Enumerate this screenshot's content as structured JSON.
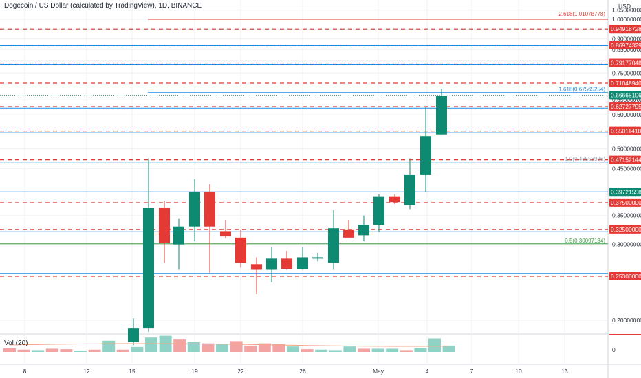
{
  "header": {
    "title": "Dogecoin / US Dollar (calculated by TradingView), 1D, BINANCE"
  },
  "volume": {
    "label": "Vol (20)"
  },
  "price_axis": {
    "currency": "USD",
    "ticks": [
      "1.05000000",
      "1.00000000",
      "0.90000000",
      "0.85000000",
      "0.80000000",
      "0.75000000",
      "0.65000000",
      "0.60000000",
      "0.50000000",
      "0.45000000",
      "0.35000000",
      "0.30000000",
      "0.20000000",
      "0.15000000"
    ],
    "volume_tick": "0"
  },
  "time_axis": {
    "labels": [
      "8",
      "12",
      "15",
      "19",
      "22",
      "26",
      "May",
      "4",
      "7",
      "10",
      "13"
    ]
  },
  "price_tags": [
    {
      "label": "0.94918728",
      "color": "#e53935"
    },
    {
      "label": "0.86974329",
      "color": "#e53935"
    },
    {
      "label": "0.79177048",
      "color": "#e53935"
    },
    {
      "label": "0.71048940",
      "color": "#e53935"
    },
    {
      "label": "0.66665106",
      "color": "#0f8a72"
    },
    {
      "label": "0.62727795",
      "color": "#e53935"
    },
    {
      "label": "0.55011418",
      "color": "#e53935"
    },
    {
      "label": "0.47152144",
      "color": "#e53935"
    },
    {
      "label": "0.39721558",
      "color": "#0f8a72"
    },
    {
      "label": "0.37500000",
      "color": "#e53935"
    },
    {
      "label": "0.32500000",
      "color": "#e53935"
    },
    {
      "label": "0.25300000",
      "color": "#e53935"
    }
  ],
  "fib_labels": [
    {
      "text": "2.618(1.01078778)",
      "color": "#e53935"
    },
    {
      "text": "1.618(0.67565254)",
      "color": "#1e88e5"
    },
    {
      "text": "1.0(0.46553936)",
      "color": "#9ea4b3"
    },
    {
      "text": "0.5(0.30097134)",
      "color": "#43a047"
    }
  ],
  "colors": {
    "up": "#0f8a72",
    "down": "#e53935",
    "blue_line": "#1e88e5",
    "red_dash": "#e53935",
    "green_line": "#43a047"
  },
  "chart_data": {
    "type": "candlestick",
    "candles": [
      {
        "x": "14",
        "o": 0.178,
        "h": 0.202,
        "l": 0.175,
        "c": 0.192
      },
      {
        "x": "15",
        "o": 0.192,
        "h": 0.475,
        "l": 0.188,
        "c": 0.365
      },
      {
        "x": "16",
        "o": 0.365,
        "h": 0.378,
        "l": 0.272,
        "c": 0.302
      },
      {
        "x": "17",
        "o": 0.3,
        "h": 0.345,
        "l": 0.262,
        "c": 0.33
      },
      {
        "x": "19",
        "o": 0.33,
        "h": 0.425,
        "l": 0.305,
        "c": 0.397
      },
      {
        "x": "20",
        "o": 0.397,
        "h": 0.414,
        "l": 0.258,
        "c": 0.33
      },
      {
        "x": "21",
        "o": 0.322,
        "h": 0.342,
        "l": 0.31,
        "c": 0.313
      },
      {
        "x": "22",
        "o": 0.311,
        "h": 0.325,
        "l": 0.265,
        "c": 0.272
      },
      {
        "x": "23",
        "o": 0.27,
        "h": 0.28,
        "l": 0.23,
        "c": 0.262
      },
      {
        "x": "24",
        "o": 0.262,
        "h": 0.296,
        "l": 0.245,
        "c": 0.278
      },
      {
        "x": "25",
        "o": 0.278,
        "h": 0.29,
        "l": 0.262,
        "c": 0.263
      },
      {
        "x": "26",
        "o": 0.263,
        "h": 0.296,
        "l": 0.262,
        "c": 0.28
      },
      {
        "x": "27",
        "o": 0.278,
        "h": 0.287,
        "l": 0.274,
        "c": 0.28
      },
      {
        "x": "28",
        "o": 0.272,
        "h": 0.36,
        "l": 0.262,
        "c": 0.327
      },
      {
        "x": "29",
        "o": 0.325,
        "h": 0.342,
        "l": 0.315,
        "c": 0.311
      },
      {
        "x": "30",
        "o": 0.315,
        "h": 0.35,
        "l": 0.305,
        "c": 0.333
      },
      {
        "x": "May",
        "o": 0.333,
        "h": 0.392,
        "l": 0.32,
        "c": 0.388
      },
      {
        "x": "2",
        "o": 0.388,
        "h": 0.392,
        "l": 0.372,
        "c": 0.376
      },
      {
        "x": "3",
        "o": 0.37,
        "h": 0.475,
        "l": 0.362,
        "c": 0.436
      },
      {
        "x": "4",
        "o": 0.436,
        "h": 0.625,
        "l": 0.397,
        "c": 0.535
      },
      {
        "x": "5",
        "o": 0.54,
        "h": 0.69,
        "l": 0.54,
        "c": 0.664
      }
    ],
    "volume": [
      {
        "x": "4",
        "v": 0.8,
        "up": false
      },
      {
        "x": "5",
        "v": 0.5,
        "up": false
      },
      {
        "x": "6",
        "v": 0.4,
        "up": true
      },
      {
        "x": "7",
        "v": 0.7,
        "up": false
      },
      {
        "x": "8",
        "v": 0.6,
        "up": false
      },
      {
        "x": "9",
        "v": 0.3,
        "up": true
      },
      {
        "x": "10",
        "v": 0.5,
        "up": false
      },
      {
        "x": "11",
        "v": 2.5,
        "up": true
      },
      {
        "x": "12",
        "v": 0.5,
        "up": false
      },
      {
        "x": "13",
        "v": 1.1,
        "up": true
      },
      {
        "x": "14",
        "v": 3.2,
        "up": true
      },
      {
        "x": "15",
        "v": 3.6,
        "up": true
      },
      {
        "x": "16",
        "v": 2.9,
        "up": false
      },
      {
        "x": "17",
        "v": 2.2,
        "up": true
      },
      {
        "x": "18",
        "v": 1.9,
        "up": false
      },
      {
        "x": "19",
        "v": 1.7,
        "up": true
      },
      {
        "x": "20",
        "v": 2.4,
        "up": false
      },
      {
        "x": "21",
        "v": 1.4,
        "up": false
      },
      {
        "x": "22",
        "v": 1.9,
        "up": false
      },
      {
        "x": "23",
        "v": 1.7,
        "up": false
      },
      {
        "x": "24",
        "v": 1.2,
        "up": true
      },
      {
        "x": "25",
        "v": 0.6,
        "up": false
      },
      {
        "x": "26",
        "v": 0.5,
        "up": true
      },
      {
        "x": "27",
        "v": 0.4,
        "up": true
      },
      {
        "x": "28",
        "v": 1.2,
        "up": true
      },
      {
        "x": "29",
        "v": 0.7,
        "up": false
      },
      {
        "x": "30",
        "v": 0.7,
        "up": true
      },
      {
        "x": "May",
        "v": 0.7,
        "up": true
      },
      {
        "x": "2",
        "v": 0.4,
        "up": false
      },
      {
        "x": "3",
        "v": 0.9,
        "up": true
      },
      {
        "x": "4",
        "v": 3.0,
        "up": true
      },
      {
        "x": "5",
        "v": 1.4,
        "up": true
      }
    ],
    "horizontal_levels": [
      {
        "price": 1.0,
        "style": "solid",
        "color": "#e53935"
      },
      {
        "price": 0.94918728,
        "style": "dashed",
        "color": "#e53935"
      },
      {
        "price": 0.945,
        "style": "solid",
        "color": "#1e88e5"
      },
      {
        "price": 0.86974329,
        "style": "dashed",
        "color": "#e53935"
      },
      {
        "price": 0.868,
        "style": "solid",
        "color": "#1e88e5"
      },
      {
        "price": 0.79177048,
        "style": "dashed",
        "color": "#e53935"
      },
      {
        "price": 0.786,
        "style": "solid",
        "color": "#1e88e5"
      },
      {
        "price": 0.7104894,
        "style": "dashed",
        "color": "#e53935"
      },
      {
        "price": 0.704,
        "style": "solid",
        "color": "#1e88e5"
      },
      {
        "price": 0.67565254,
        "style": "solid",
        "color": "#1e88e5"
      },
      {
        "price": 0.66665106,
        "style": "dotted",
        "color": "#0f8a72"
      },
      {
        "price": 0.62727795,
        "style": "dashed",
        "color": "#e53935"
      },
      {
        "price": 0.622,
        "style": "solid",
        "color": "#1e88e5"
      },
      {
        "price": 0.55011418,
        "style": "dashed",
        "color": "#e53935"
      },
      {
        "price": 0.545,
        "style": "solid",
        "color": "#1e88e5"
      },
      {
        "price": 0.47152144,
        "style": "dashed",
        "color": "#e53935"
      },
      {
        "price": 0.466,
        "style": "solid",
        "color": "#1e88e5"
      },
      {
        "price": 0.39721558,
        "style": "solid",
        "color": "#1e88e5"
      },
      {
        "price": 0.375,
        "style": "dashed",
        "color": "#e53935"
      },
      {
        "price": 0.325,
        "style": "dashed",
        "color": "#e53935"
      },
      {
        "price": 0.321,
        "style": "solid",
        "color": "#1e88e5"
      },
      {
        "price": 0.30097134,
        "style": "solid",
        "color": "#43a047"
      },
      {
        "price": 0.253,
        "style": "dashed",
        "color": "#e53935"
      },
      {
        "price": 0.257,
        "style": "solid",
        "color": "#1e88e5"
      }
    ]
  }
}
